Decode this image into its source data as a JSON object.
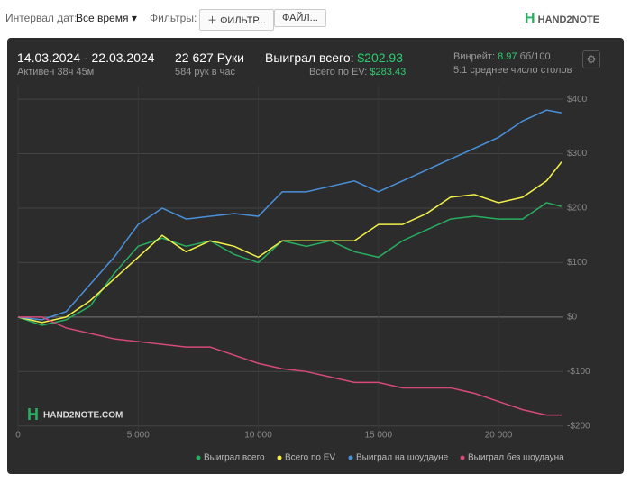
{
  "toolbar": {
    "date_label": "Интервал дат:",
    "date_value": "Все время",
    "filters_label": "Фильтры:",
    "filter_button": "ФИЛЬТР...",
    "file_button": "ФАЙЛ...",
    "logo": "HAND2NOTE"
  },
  "stats": {
    "dates": "14.03.2024 - 22.03.2024",
    "active": "Активен 38ч 45м",
    "hands": "22 627 Руки",
    "hands_per_hour": "584 рук в час",
    "won_label": "Выиграл всего:",
    "won_value": "$202.93",
    "ev_label": "Всего по EV:",
    "ev_value": "$283.43",
    "winrate_label": "Винрейт:",
    "winrate_value": "8.97",
    "winrate_unit": "бб/100",
    "tables": "5.1 среднее число столов"
  },
  "chart_data": {
    "type": "line",
    "watermark": "HAND2NOTE.COM",
    "x": [
      0,
      1000,
      2000,
      3000,
      4000,
      5000,
      6000,
      7000,
      8000,
      9000,
      10000,
      11000,
      12000,
      13000,
      14000,
      15000,
      16000,
      17000,
      18000,
      19000,
      20000,
      21000,
      22000,
      22627
    ],
    "series": [
      {
        "name": "Выиграл всего",
        "color": "#27ae60",
        "values": [
          0,
          -15,
          -5,
          20,
          80,
          130,
          145,
          130,
          140,
          115,
          100,
          140,
          130,
          140,
          120,
          110,
          140,
          160,
          180,
          185,
          180,
          180,
          210,
          203
        ]
      },
      {
        "name": "Всего по EV",
        "color": "#f1f04a",
        "values": [
          0,
          -10,
          0,
          30,
          70,
          110,
          150,
          120,
          140,
          130,
          110,
          140,
          140,
          140,
          140,
          170,
          170,
          190,
          220,
          225,
          210,
          220,
          250,
          285
        ]
      },
      {
        "name": "Выиграл на шоудауне",
        "color": "#4a90d9",
        "values": [
          0,
          -5,
          10,
          60,
          110,
          170,
          200,
          180,
          185,
          190,
          185,
          230,
          230,
          240,
          250,
          230,
          250,
          270,
          290,
          310,
          330,
          360,
          380,
          375
        ]
      },
      {
        "name": "Выиграл без шоудауна",
        "color": "#d64a78",
        "values": [
          0,
          0,
          -20,
          -30,
          -40,
          -45,
          -50,
          -55,
          -55,
          -70,
          -85,
          -95,
          -100,
          -110,
          -120,
          -120,
          -130,
          -130,
          -130,
          -140,
          -155,
          -170,
          -180,
          -180
        ]
      }
    ],
    "xlim": [
      0,
      22700
    ],
    "ylim": [
      -212,
      425
    ],
    "xticks": [
      0,
      {
        "value": 5000,
        "label": "5 000"
      },
      {
        "value": 10000,
        "label": "10 000"
      },
      {
        "value": 15000,
        "label": "15 000"
      },
      {
        "value": 20000,
        "label": "20 000"
      }
    ],
    "yticks": [
      {
        "value": -200,
        "label": "-$200"
      },
      {
        "value": -100,
        "label": "-$100"
      },
      {
        "value": 0,
        "label": "$0"
      },
      {
        "value": 100,
        "label": "$100"
      },
      {
        "value": 200,
        "label": "$200"
      },
      {
        "value": 300,
        "label": "$300"
      },
      {
        "value": 400,
        "label": "$400"
      }
    ],
    "grid": true
  }
}
